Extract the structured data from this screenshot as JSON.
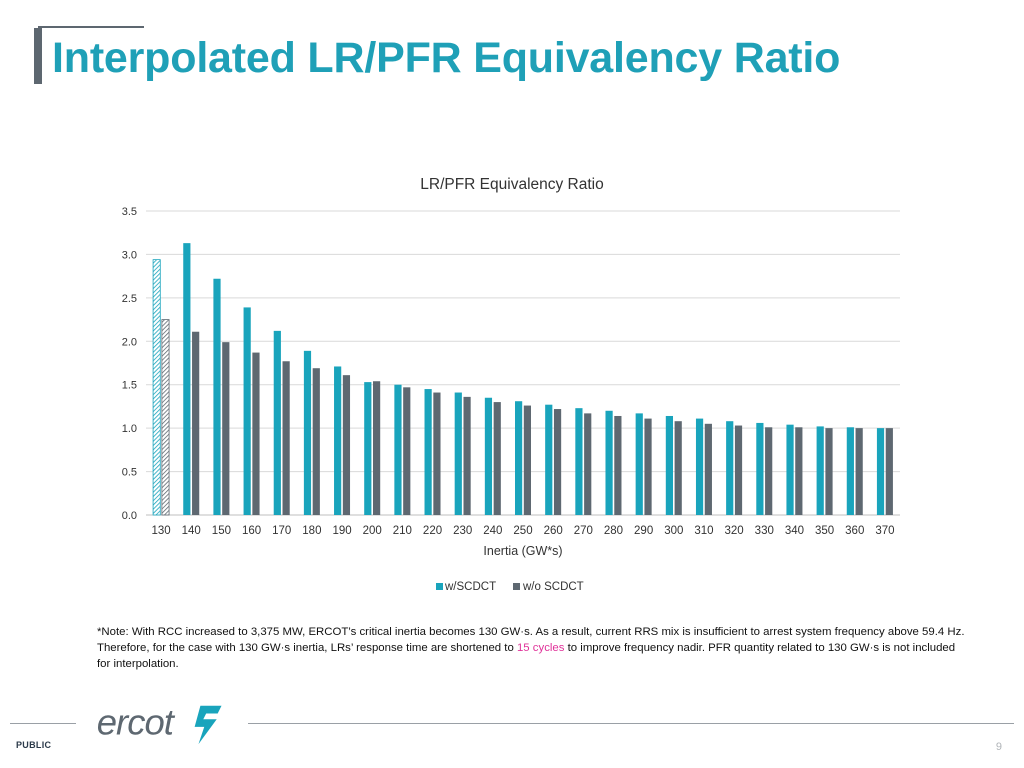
{
  "slide": {
    "title": "Interpolated LR/PFR Equivalency Ratio"
  },
  "note": {
    "before": "*Note: With RCC increased to 3,375 MW, ERCOT’s critical inertia becomes 130 GW·s. As a result, current RRS mix is insufficient to arrest system frequency above 59.4 Hz. Therefore, for the case with 130 GW·s inertia, LRs’ response time are shortened to ",
    "highlight": "15 cycles",
    "after": " to improve frequency nadir. PFR quantity related to 130 GW·s is not included for interpolation."
  },
  "footer": {
    "logo_text": "ercot",
    "classification": "PUBLIC",
    "page_number": "9"
  },
  "colors": {
    "title": "#1fa0b7",
    "series1": "#19a4bc",
    "series2": "#5e6871",
    "highlight": "#e0339a"
  },
  "chart_data": {
    "type": "bar",
    "title": "LR/PFR Equivalency Ratio",
    "xlabel": "Inertia (GW*s)",
    "ylabel": "",
    "ylim": [
      0,
      3.5
    ],
    "yticks": [
      "0.0",
      "0.5",
      "1.0",
      "1.5",
      "2.0",
      "2.5",
      "3.0",
      "3.5"
    ],
    "grid": true,
    "legend_position": "bottom",
    "categories": [
      "130",
      "140",
      "150",
      "160",
      "170",
      "180",
      "190",
      "200",
      "210",
      "220",
      "230",
      "240",
      "250",
      "260",
      "270",
      "280",
      "290",
      "300",
      "310",
      "320",
      "330",
      "340",
      "350",
      "360",
      "370"
    ],
    "series": [
      {
        "name": "w/SCDCT",
        "values": [
          2.94,
          3.13,
          2.72,
          2.39,
          2.12,
          1.89,
          1.71,
          1.53,
          1.5,
          1.45,
          1.41,
          1.35,
          1.31,
          1.27,
          1.23,
          1.2,
          1.17,
          1.14,
          1.11,
          1.08,
          1.06,
          1.04,
          1.02,
          1.01,
          1.0
        ]
      },
      {
        "name": "w/o SCDCT",
        "values": [
          2.25,
          2.11,
          1.99,
          1.87,
          1.77,
          1.69,
          1.61,
          1.54,
          1.47,
          1.41,
          1.36,
          1.3,
          1.26,
          1.22,
          1.17,
          1.14,
          1.11,
          1.08,
          1.05,
          1.03,
          1.01,
          1.01,
          1.0,
          1.0,
          1.0
        ]
      }
    ],
    "hatched_category": "130"
  }
}
